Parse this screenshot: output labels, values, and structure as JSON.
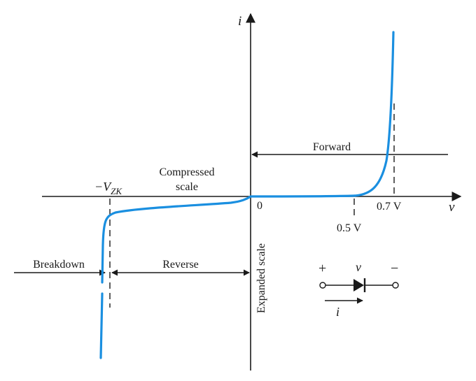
{
  "colors": {
    "curve": "#1a8fe0",
    "ink": "#1a1a1a"
  },
  "axes": {
    "y_label": "i",
    "x_label": "v",
    "origin_label": "0"
  },
  "labels": {
    "forward": "Forward",
    "compressed_line1": "Compressed",
    "compressed_line2": "scale",
    "vzk_prefix": "−V",
    "vzk_subscript": "ZK",
    "v07": "0.7 V",
    "v05": "0.5 V",
    "breakdown": "Breakdown",
    "reverse": "Reverse",
    "expanded_scale": "Expanded scale"
  },
  "diode": {
    "plus": "+",
    "minus": "−",
    "v": "v",
    "i": "i"
  }
}
